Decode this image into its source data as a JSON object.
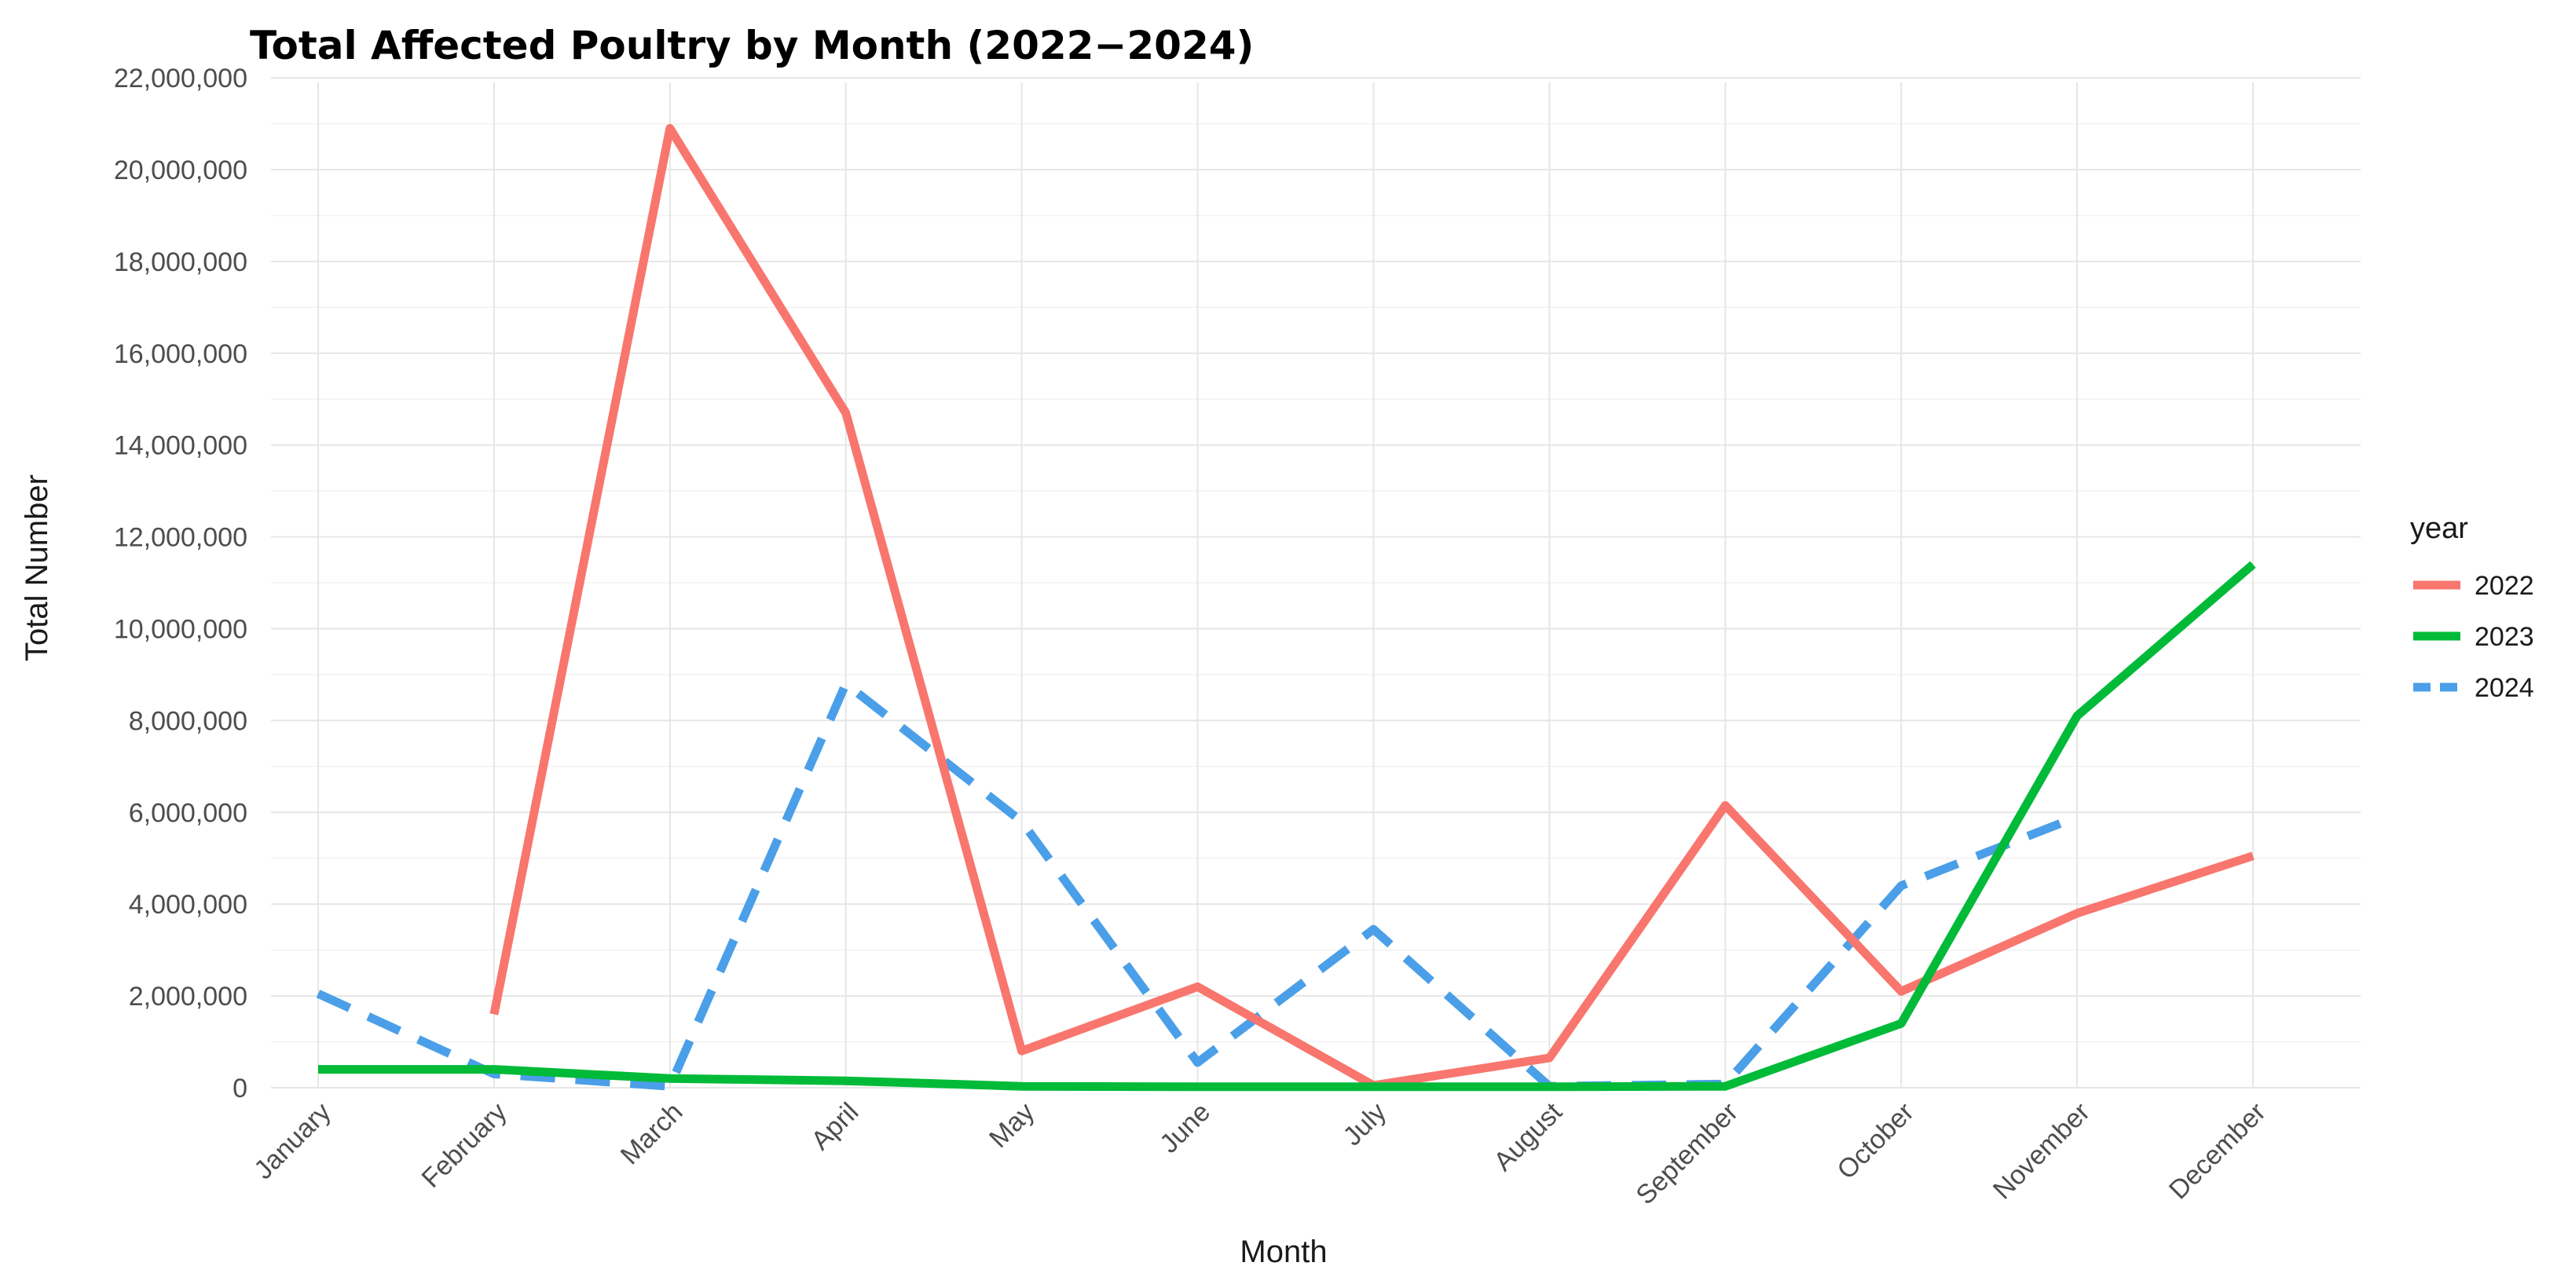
{
  "chart_data": {
    "type": "line",
    "title": "Total Affected Poultry by Month (2022−2024)",
    "xlabel": "Month",
    "ylabel": "Total Number",
    "ylim": [
      0,
      22000000
    ],
    "y_ticks": [
      0,
      2000000,
      4000000,
      6000000,
      8000000,
      10000000,
      12000000,
      14000000,
      16000000,
      18000000,
      20000000,
      22000000
    ],
    "y_tick_labels": [
      "0",
      "2,000,000",
      "4,000,000",
      "6,000,000",
      "8,000,000",
      "10,000,000",
      "12,000,000",
      "14,000,000",
      "16,000,000",
      "18,000,000",
      "20,000,000",
      "22,000,000"
    ],
    "categories": [
      "January",
      "February",
      "March",
      "April",
      "May",
      "June",
      "July",
      "August",
      "September",
      "October",
      "November",
      "December"
    ],
    "legend_title": "year",
    "legend_position": "right",
    "grid": true,
    "series": [
      {
        "name": "2022",
        "color": "#F8766D",
        "dash": "solid",
        "values": [
          null,
          1600000,
          20900000,
          14700000,
          800000,
          2200000,
          50000,
          650000,
          6150000,
          2100000,
          3800000,
          5050000
        ]
      },
      {
        "name": "2023",
        "color": "#00BA38",
        "dash": "solid",
        "values": [
          400000,
          400000,
          200000,
          150000,
          30000,
          20000,
          20000,
          20000,
          30000,
          1400000,
          8100000,
          11400000
        ]
      },
      {
        "name": "2024",
        "color": "#4A9FE8",
        "dash": "dashed",
        "values": [
          2050000,
          300000,
          30000,
          8800000,
          5800000,
          550000,
          3450000,
          30000,
          80000,
          4400000,
          5900000,
          null
        ]
      }
    ]
  }
}
